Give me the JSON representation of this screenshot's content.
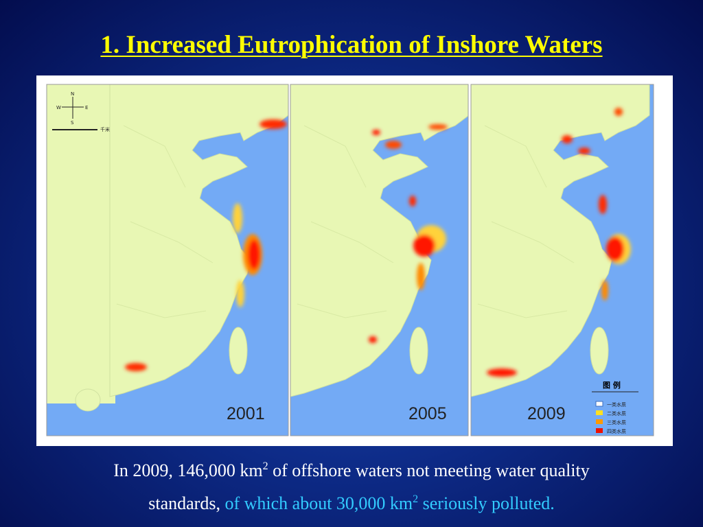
{
  "title": "1. Increased Eutrophication of Inshore Waters",
  "maps": [
    {
      "year": "2001"
    },
    {
      "year": "2005"
    },
    {
      "year": "2009"
    }
  ],
  "compass": {
    "n": "N",
    "s": "S",
    "w": "W",
    "e": "E"
  },
  "scale": {
    "unit": "千米"
  },
  "legend": {
    "title": "图 例",
    "items": [
      "一类水质",
      "二类水质",
      "三类水质",
      "四类水质"
    ]
  },
  "caption": {
    "part1": "In 2009, 146,000 km",
    "sup1": "2",
    "part2": " of  offshore waters not meeting water quality",
    "part3": "standards,",
    "highlight1": " of  which about 30,000 km",
    "sup2": "2",
    "highlight2": " seriously polluted."
  }
}
